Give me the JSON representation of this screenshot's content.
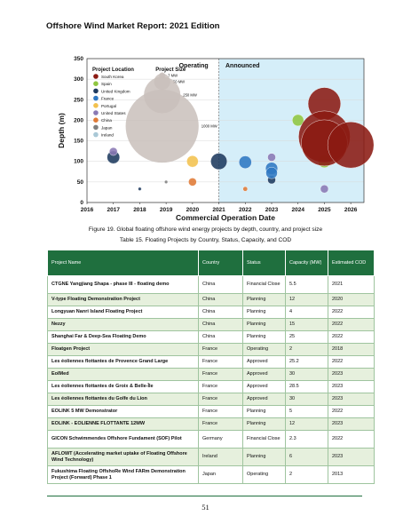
{
  "header": {
    "title": "Offshore Wind Market Report: 2021 Edition"
  },
  "chart_data": {
    "type": "scatter",
    "xlabel": "Commercial Operation Date",
    "ylabel": "Depth (m)",
    "xlim": [
      2016,
      2026.5
    ],
    "ylim": [
      0,
      350
    ],
    "x_ticks": [
      "2016",
      "2017",
      "2018",
      "2019",
      "2020",
      "2021",
      "2022",
      "2023",
      "2024",
      "2025",
      "2026"
    ],
    "y_ticks": [
      "0",
      "50",
      "100",
      "150",
      "200",
      "250",
      "300",
      "350"
    ],
    "regions": {
      "operating": "Operating",
      "announced": "Announced"
    },
    "legend_title": "Project Location",
    "size_legend_title": "Project Size",
    "size_legend": [
      {
        "label": "7 MW",
        "mw": 7
      },
      {
        "label": "50 MW",
        "mw": 50
      },
      {
        "label": "250 MW",
        "mw": 250
      },
      {
        "label": "1000 MW",
        "mw": 1000
      }
    ],
    "legend": [
      {
        "name": "South Korea",
        "color": "#8b1a12"
      },
      {
        "name": "Spain",
        "color": "#8fc640"
      },
      {
        "name": "United Kingdom",
        "color": "#1e3a5f"
      },
      {
        "name": "France",
        "color": "#2e77c2"
      },
      {
        "name": "Portugal",
        "color": "#f2c14e"
      },
      {
        "name": "United States",
        "color": "#8a79b4"
      },
      {
        "name": "China",
        "color": "#e07a36"
      },
      {
        "name": "Japan",
        "color": "#7f7f7f"
      },
      {
        "name": "Ireland",
        "color": "#a9c8d6"
      }
    ],
    "series": [
      {
        "name": "United Kingdom",
        "color": "#1e3a5f",
        "points": [
          {
            "x": 2017,
            "y": 110,
            "mw": 30
          },
          {
            "x": 2018,
            "y": 33,
            "mw": 2
          },
          {
            "x": 2021,
            "y": 100,
            "mw": 50
          },
          {
            "x": 2023,
            "y": 55,
            "mw": 12
          }
        ]
      },
      {
        "name": "France",
        "color": "#2e77c2",
        "points": [
          {
            "x": 2023,
            "y": 83,
            "mw": 28
          },
          {
            "x": 2023,
            "y": 72,
            "mw": 25
          },
          {
            "x": 2022,
            "y": 98,
            "mw": 30
          }
        ]
      },
      {
        "name": "United States",
        "color": "#8a79b4",
        "points": [
          {
            "x": 2017,
            "y": 124,
            "mw": 12
          },
          {
            "x": 2023,
            "y": 110,
            "mw": 12
          },
          {
            "x": 2025,
            "y": 33,
            "mw": 12
          }
        ]
      },
      {
        "name": "Portugal",
        "color": "#f2c14e",
        "points": [
          {
            "x": 2020,
            "y": 100,
            "mw": 25
          }
        ]
      },
      {
        "name": "China",
        "color": "#e07a36",
        "points": [
          {
            "x": 2020,
            "y": 50,
            "mw": 12
          },
          {
            "x": 2022,
            "y": 33,
            "mw": 4
          }
        ]
      },
      {
        "name": "Spain",
        "color": "#8fc640",
        "points": [
          {
            "x": 2024,
            "y": 200,
            "mw": 25
          },
          {
            "x": 2025,
            "y": 100,
            "mw": 30
          }
        ]
      },
      {
        "name": "Japan",
        "color": "#7f7f7f",
        "points": [
          {
            "x": 2019,
            "y": 50,
            "mw": 2
          }
        ]
      },
      {
        "name": "South Korea",
        "color": "#8b1a12",
        "points": [
          {
            "x": 2025,
            "y": 240,
            "mw": 200
          },
          {
            "x": 2025,
            "y": 160,
            "mw": 500
          },
          {
            "x": 2025,
            "y": 145,
            "mw": 400
          },
          {
            "x": 2026,
            "y": 140,
            "mw": 400
          }
        ]
      }
    ]
  },
  "figure_caption": "Figure 19. Global floating offshore wind energy projects by depth, country, and project size",
  "table_caption": "Table 15. Floating Projects by Country, Status, Capacity, and COD",
  "table": {
    "headers": [
      "Project Name",
      "Country",
      "Status",
      "Capacity (MW)",
      "Estimated COD"
    ],
    "rows": [
      [
        "CTGNE Yangjiang Shapa - phase III - floating demo",
        "China",
        "Financial Close",
        "5.5",
        "2021"
      ],
      [
        "V-type Floating Demonstration Project",
        "China",
        "Planning",
        "12",
        "2020"
      ],
      [
        "Longyuan Nanri Island Floating Project",
        "China",
        "Planning",
        "4",
        "2022"
      ],
      [
        "Nezzy",
        "China",
        "Planning",
        "15",
        "2022"
      ],
      [
        "Shanghai Far & Deep-Sea Floating Demo",
        "China",
        "Planning",
        "25",
        "2022"
      ],
      [
        "Floatgen Project",
        "France",
        "Operating",
        "2",
        "2018"
      ],
      [
        "Les éoliennes flottantes de Provence Grand Large",
        "France",
        "Approved",
        "25.2",
        "2022"
      ],
      [
        "EolMed",
        "France",
        "Approved",
        "30",
        "2023"
      ],
      [
        "Les éoliennes flottantes de Groix & Belle-Île",
        "France",
        "Approved",
        "28.5",
        "2023"
      ],
      [
        "Les éoliennes flottantes du Golfe du Lion",
        "France",
        "Approved",
        "30",
        "2023"
      ],
      [
        "EOLINK 5 MW Demonstrator",
        "France",
        "Planning",
        "5",
        "2022"
      ],
      [
        "EOLINK - EOLIENNE FLOTTANTE 12MW",
        "France",
        "Planning",
        "12",
        "2023"
      ],
      [
        "GICON Schwimmendes Offshore Fundament (SOF) Pilot",
        "Germany",
        "Financial Close",
        "2.3",
        "2022"
      ],
      [
        "AFLOWT (Accelerating market uptake of Floating Offshore Wind Technology)",
        "Ireland",
        "Planning",
        "6",
        "2023"
      ],
      [
        "Fukushima Floating OffshoRe Wind FARm Demonstration Project (Forward) Phase 1",
        "Japan",
        "Operating",
        "2",
        "2013"
      ]
    ]
  },
  "page_number": "51"
}
